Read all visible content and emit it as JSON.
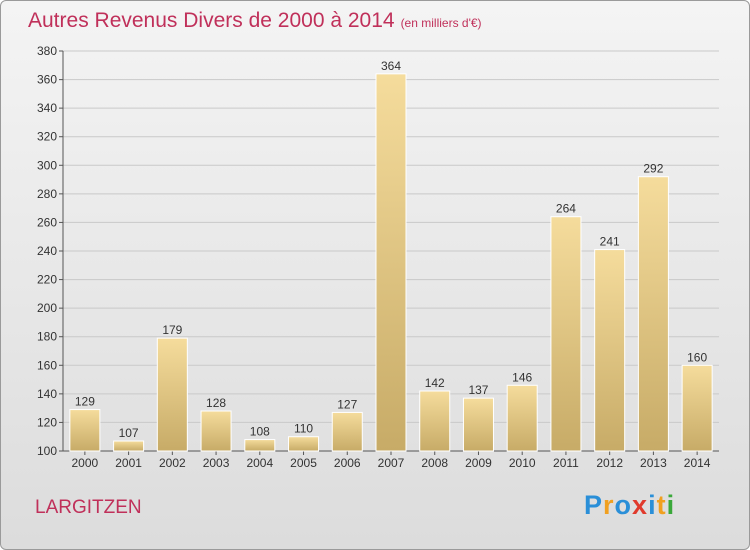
{
  "title": "Autres Revenus Divers de 2000 à 2014",
  "title_unit": "(en milliers d'€)",
  "place": "LARGITZEN",
  "logo": {
    "letters": [
      "P",
      "r",
      "o",
      "x",
      "i",
      "t",
      "i"
    ],
    "colors": [
      "#2a8fd8",
      "#f0a020",
      "#2a8fd8",
      "#e03a2c",
      "#2a8fd8",
      "#f0a020",
      "#3aa83a"
    ]
  },
  "colors": {
    "title": "#c0305a",
    "bar_light": "#f5dc9c",
    "bar_dark": "#c7ab67"
  },
  "chart_data": {
    "type": "bar",
    "categories": [
      "2000",
      "2001",
      "2002",
      "2003",
      "2004",
      "2005",
      "2006",
      "2007",
      "2008",
      "2009",
      "2010",
      "2011",
      "2012",
      "2013",
      "2014"
    ],
    "values": [
      129,
      107,
      179,
      128,
      108,
      110,
      127,
      364,
      142,
      137,
      146,
      264,
      241,
      292,
      160
    ],
    "ylim": [
      100,
      380
    ],
    "yticks": [
      100,
      120,
      140,
      160,
      180,
      200,
      220,
      240,
      260,
      280,
      300,
      320,
      340,
      360,
      380
    ],
    "grid": true,
    "legend": "none"
  }
}
